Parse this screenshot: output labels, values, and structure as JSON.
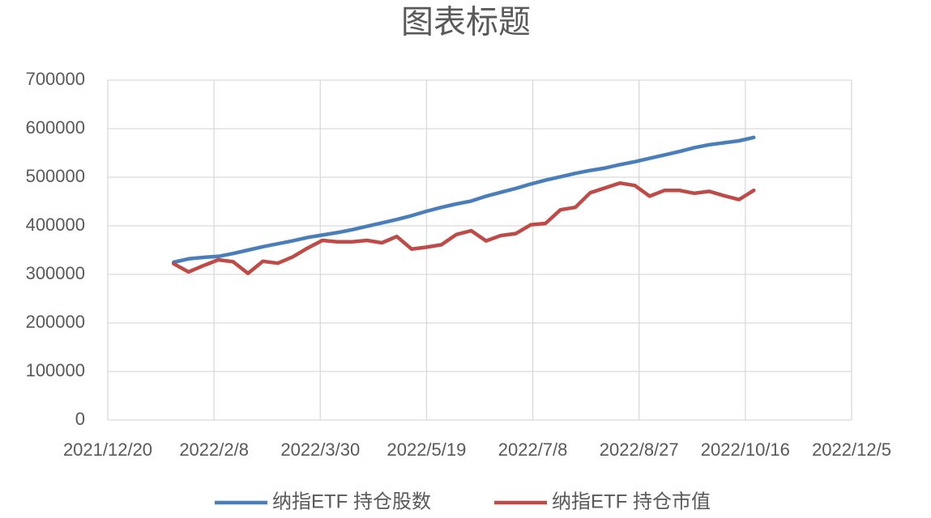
{
  "chart_data": {
    "type": "line",
    "title": "图表标题",
    "x": [
      "2022/1/20",
      "2022/1/27",
      "2022/2/3",
      "2022/2/10",
      "2022/2/17",
      "2022/2/24",
      "2022/3/3",
      "2022/3/10",
      "2022/3/17",
      "2022/3/24",
      "2022/3/31",
      "2022/4/7",
      "2022/4/14",
      "2022/4/21",
      "2022/4/28",
      "2022/5/5",
      "2022/5/12",
      "2022/5/19",
      "2022/5/26",
      "2022/6/2",
      "2022/6/9",
      "2022/6/16",
      "2022/6/23",
      "2022/6/30",
      "2022/7/7",
      "2022/7/14",
      "2022/7/21",
      "2022/7/28",
      "2022/8/4",
      "2022/8/11",
      "2022/8/18",
      "2022/8/25",
      "2022/9/1",
      "2022/9/8",
      "2022/9/15",
      "2022/9/22",
      "2022/9/29",
      "2022/10/6",
      "2022/10/13",
      "2022/10/20"
    ],
    "series": [
      {
        "name": "纳指ETF 持仓股数",
        "color": "#4a7ebb",
        "values": [
          325000,
          332000,
          335000,
          337000,
          343000,
          350000,
          357000,
          363000,
          369000,
          376000,
          381000,
          386000,
          392000,
          399000,
          406000,
          413000,
          421000,
          430000,
          438000,
          445000,
          451000,
          461000,
          469000,
          477000,
          486000,
          494000,
          501000,
          508000,
          514000,
          519000,
          526000,
          532000,
          539000,
          546000,
          553000,
          561000,
          567000,
          571000,
          575000,
          582000
        ]
      },
      {
        "name": "纳指ETF 持仓市值",
        "color": "#be4b48",
        "values": [
          322000,
          305000,
          318000,
          330000,
          326000,
          302000,
          327000,
          323000,
          336000,
          354000,
          370000,
          367000,
          367000,
          370000,
          365000,
          378000,
          352000,
          356000,
          361000,
          382000,
          390000,
          369000,
          380000,
          384000,
          402000,
          405000,
          433000,
          438000,
          468000,
          478000,
          488000,
          483000,
          461000,
          473000,
          473000,
          467000,
          471000,
          462000,
          454000,
          473000
        ]
      }
    ],
    "xlim": [
      "2021/12/20",
      "2022/12/5"
    ],
    "xticks": [
      "2021/12/20",
      "2022/2/8",
      "2022/3/30",
      "2022/5/19",
      "2022/7/8",
      "2022/8/27",
      "2022/10/16",
      "2022/12/5"
    ],
    "ylim": [
      0,
      700000
    ],
    "yticks": [
      0,
      100000,
      200000,
      300000,
      400000,
      500000,
      600000,
      700000
    ],
    "grid": true,
    "legend": "bottom"
  }
}
